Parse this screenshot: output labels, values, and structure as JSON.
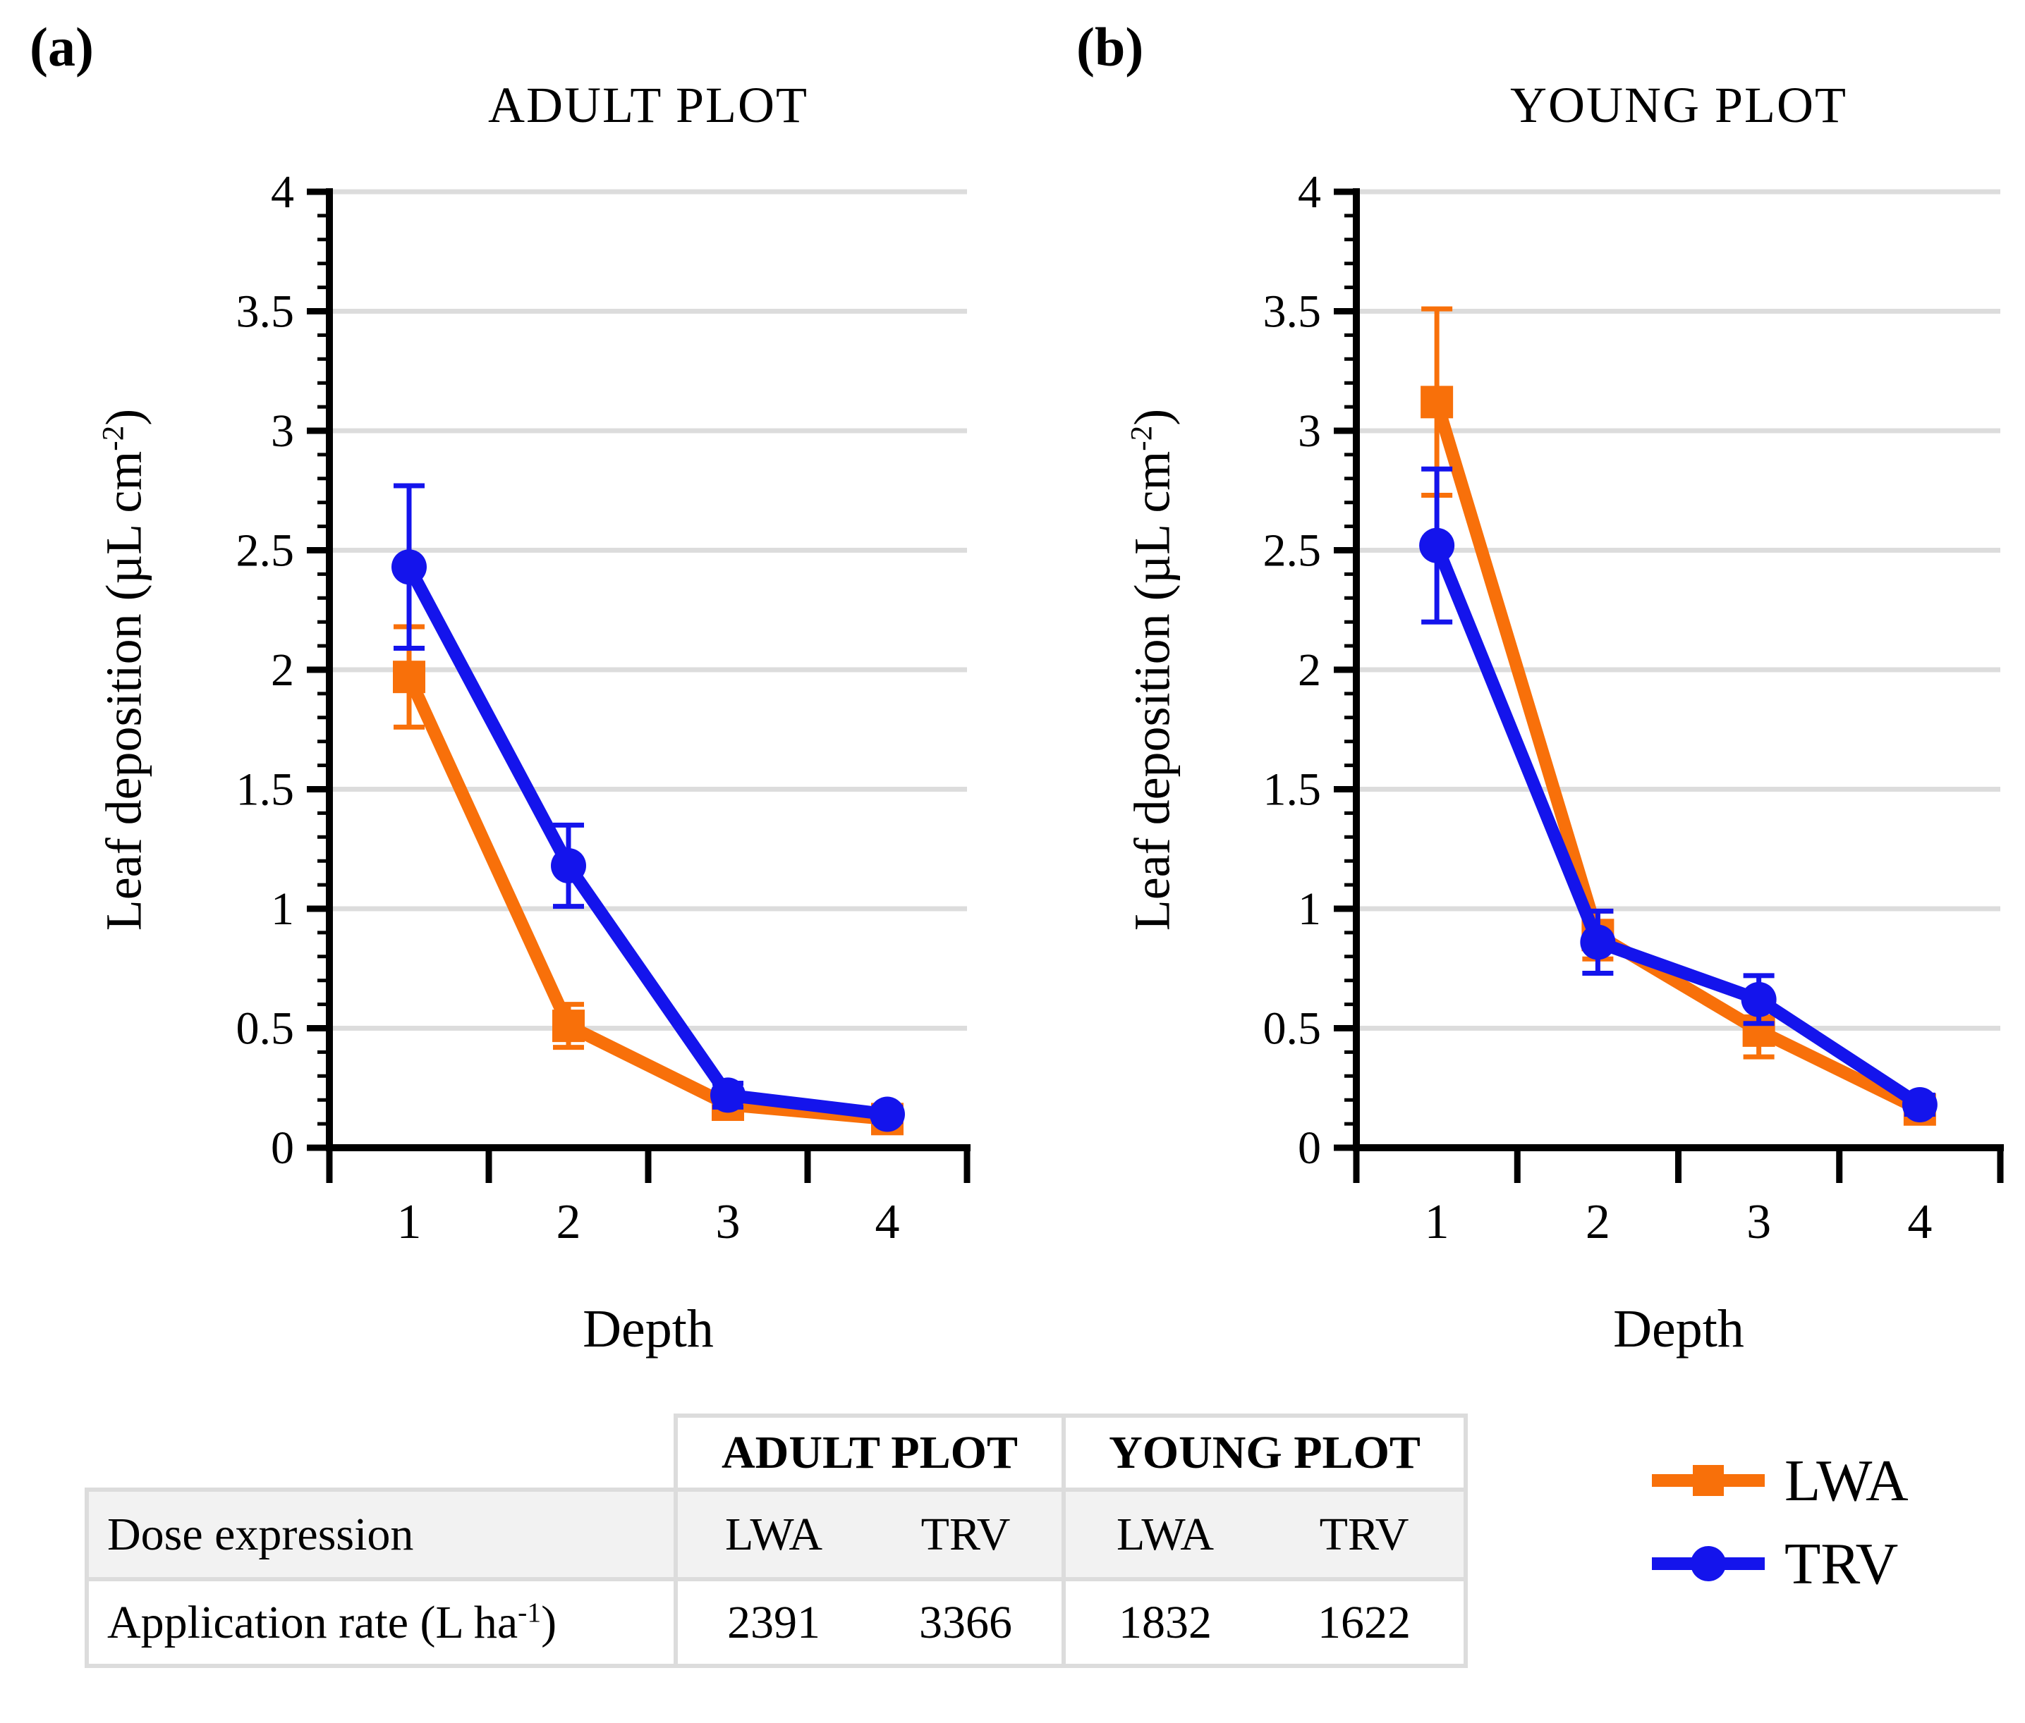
{
  "figure": {
    "panel_a_label": "(a)",
    "panel_b_label": "(b)",
    "x_axis_title": "Depth",
    "y_axis_title_main": "Leaf deposition (µL cm",
    "y_axis_title_sup": "-2",
    "y_axis_title_close": ")"
  },
  "colors": {
    "lwa": "#F8700A",
    "trv": "#1414EC",
    "gridline": "#DCDCDC",
    "axis": "#000000",
    "table_border": "#DCDCDC",
    "table_row_bg": "#F2F2F2"
  },
  "chart_data": [
    {
      "type": "line",
      "panel": "a",
      "title": "ADULT PLOT",
      "x": [
        1,
        2,
        3,
        4
      ],
      "xlabel": "Depth",
      "ylabel": "Leaf deposition (µL cm-2)",
      "ylim": [
        0,
        4
      ],
      "ytick_step": 0.5,
      "yminor_step": 0.1,
      "grid": "horizontal",
      "legend_position": "none",
      "series": [
        {
          "name": "LWA",
          "color": "#F8700A",
          "marker": "square",
          "values": [
            1.97,
            0.51,
            0.18,
            0.12
          ],
          "errors": [
            0.21,
            0.09,
            0.05,
            0.03
          ]
        },
        {
          "name": "TRV",
          "color": "#1414EC",
          "marker": "circle",
          "values": [
            2.43,
            1.18,
            0.22,
            0.14
          ],
          "errors": [
            0.34,
            0.17,
            0.05,
            0.03
          ]
        }
      ]
    },
    {
      "type": "line",
      "panel": "b",
      "title": "YOUNG PLOT",
      "x": [
        1,
        2,
        3,
        4
      ],
      "xlabel": "Depth",
      "ylabel": "Leaf deposition (µL cm-2)",
      "ylim": [
        0,
        4
      ],
      "ytick_step": 0.5,
      "yminor_step": 0.1,
      "grid": "horizontal",
      "legend_position": "none",
      "series": [
        {
          "name": "LWA",
          "color": "#F8700A",
          "marker": "square",
          "values": [
            3.12,
            0.89,
            0.49,
            0.16
          ],
          "errors": [
            0.39,
            0.1,
            0.11,
            0.04
          ]
        },
        {
          "name": "TRV",
          "color": "#1414EC",
          "marker": "circle",
          "values": [
            2.52,
            0.86,
            0.62,
            0.18
          ],
          "errors": [
            0.32,
            0.13,
            0.1,
            0.04
          ]
        }
      ]
    }
  ],
  "legend": {
    "items": [
      {
        "label": "LWA",
        "marker": "square",
        "color": "#F8700A"
      },
      {
        "label": "TRV",
        "marker": "circle",
        "color": "#1414EC"
      }
    ]
  },
  "table": {
    "group_headers": [
      "ADULT PLOT",
      "YOUNG PLOT"
    ],
    "rows": [
      {
        "label": "Dose expression",
        "values": [
          "LWA",
          "TRV",
          "LWA",
          "TRV"
        ]
      },
      {
        "label_main": "Application rate (L ha",
        "label_sup": "-1",
        "label_close": ")",
        "values": [
          "2391",
          "3366",
          "1832",
          "1622"
        ]
      }
    ]
  }
}
